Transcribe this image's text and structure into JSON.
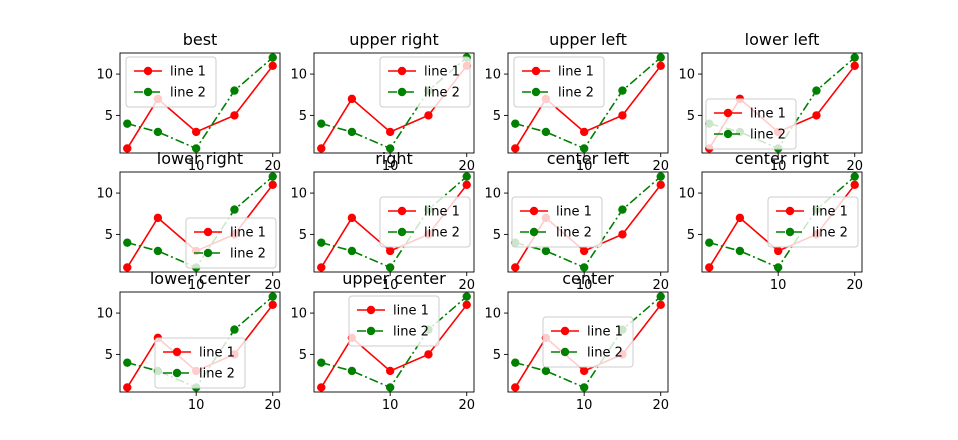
{
  "figure": {
    "background": "#ffffff"
  },
  "series_styles": [
    {
      "color": "#ff0000",
      "dash": "solid"
    },
    {
      "color": "#008000",
      "dash": "dashdot"
    }
  ],
  "chart_data": [
    {
      "type": "line",
      "title": "best",
      "legend_loc": "best",
      "legend_placement": "upper-left-inside",
      "x": [
        1,
        5,
        10,
        15,
        20
      ],
      "xticks": [
        10,
        20
      ],
      "yticks": [
        5,
        10
      ],
      "series": [
        {
          "name": "line 1",
          "values": [
            1,
            7,
            3,
            5,
            11
          ]
        },
        {
          "name": "line 2",
          "values": [
            4,
            3,
            1,
            8,
            12
          ]
        }
      ]
    },
    {
      "type": "line",
      "title": "upper right",
      "legend_loc": "upper right",
      "legend_placement": "top-right",
      "x": [
        1,
        5,
        10,
        15,
        20
      ],
      "xticks": [
        10,
        20
      ],
      "yticks": [
        5,
        10
      ],
      "series": [
        {
          "name": "line 1",
          "values": [
            1,
            7,
            3,
            5,
            11
          ]
        },
        {
          "name": "line 2",
          "values": [
            4,
            3,
            1,
            8,
            12
          ]
        }
      ]
    },
    {
      "type": "line",
      "title": "upper left",
      "legend_loc": "upper left",
      "legend_placement": "top-left",
      "x": [
        1,
        5,
        10,
        15,
        20
      ],
      "xticks": [
        10,
        20
      ],
      "yticks": [
        5,
        10
      ],
      "series": [
        {
          "name": "line 1",
          "values": [
            1,
            7,
            3,
            5,
            11
          ]
        },
        {
          "name": "line 2",
          "values": [
            4,
            3,
            1,
            8,
            12
          ]
        }
      ]
    },
    {
      "type": "line",
      "title": "lower left",
      "legend_loc": "lower left",
      "legend_placement": "bottom-left",
      "x": [
        1,
        5,
        10,
        15,
        20
      ],
      "xticks": [
        10,
        20
      ],
      "yticks": [
        5,
        10
      ],
      "series": [
        {
          "name": "line 1",
          "values": [
            1,
            7,
            3,
            5,
            11
          ]
        },
        {
          "name": "line 2",
          "values": [
            4,
            3,
            1,
            8,
            12
          ]
        }
      ]
    },
    {
      "type": "line",
      "title": "lower right",
      "legend_loc": "lower right",
      "legend_placement": "bottom-right",
      "x": [
        1,
        5,
        10,
        15,
        20
      ],
      "xticks": [
        10,
        20
      ],
      "yticks": [
        5,
        10
      ],
      "series": [
        {
          "name": "line 1",
          "values": [
            1,
            7,
            3,
            5,
            11
          ]
        },
        {
          "name": "line 2",
          "values": [
            4,
            3,
            1,
            8,
            12
          ]
        }
      ]
    },
    {
      "type": "line",
      "title": "right",
      "legend_loc": "right",
      "legend_placement": "center-right",
      "x": [
        1,
        5,
        10,
        15,
        20
      ],
      "xticks": [
        10,
        20
      ],
      "yticks": [
        5,
        10
      ],
      "series": [
        {
          "name": "line 1",
          "values": [
            1,
            7,
            3,
            5,
            11
          ]
        },
        {
          "name": "line 2",
          "values": [
            4,
            3,
            1,
            8,
            12
          ]
        }
      ]
    },
    {
      "type": "line",
      "title": "center left",
      "legend_loc": "center left",
      "legend_placement": "center-left",
      "x": [
        1,
        5,
        10,
        15,
        20
      ],
      "xticks": [
        10,
        20
      ],
      "yticks": [
        5,
        10
      ],
      "series": [
        {
          "name": "line 1",
          "values": [
            1,
            7,
            3,
            5,
            11
          ]
        },
        {
          "name": "line 2",
          "values": [
            4,
            3,
            1,
            8,
            12
          ]
        }
      ]
    },
    {
      "type": "line",
      "title": "center right",
      "legend_loc": "center right",
      "legend_placement": "center-right",
      "x": [
        1,
        5,
        10,
        15,
        20
      ],
      "xticks": [
        10,
        20
      ],
      "yticks": [
        5,
        10
      ],
      "series": [
        {
          "name": "line 1",
          "values": [
            1,
            7,
            3,
            5,
            11
          ]
        },
        {
          "name": "line 2",
          "values": [
            4,
            3,
            1,
            8,
            12
          ]
        }
      ]
    },
    {
      "type": "line",
      "title": "lower center",
      "legend_loc": "lower center",
      "legend_placement": "bottom-center",
      "x": [
        1,
        5,
        10,
        15,
        20
      ],
      "xticks": [
        10,
        20
      ],
      "yticks": [
        5,
        10
      ],
      "series": [
        {
          "name": "line 1",
          "values": [
            1,
            7,
            3,
            5,
            11
          ]
        },
        {
          "name": "line 2",
          "values": [
            4,
            3,
            1,
            8,
            12
          ]
        }
      ]
    },
    {
      "type": "line",
      "title": "upper center",
      "legend_loc": "upper center",
      "legend_placement": "top-center",
      "x": [
        1,
        5,
        10,
        15,
        20
      ],
      "xticks": [
        10,
        20
      ],
      "yticks": [
        5,
        10
      ],
      "series": [
        {
          "name": "line 1",
          "values": [
            1,
            7,
            3,
            5,
            11
          ]
        },
        {
          "name": "line 2",
          "values": [
            4,
            3,
            1,
            8,
            12
          ]
        }
      ]
    },
    {
      "type": "line",
      "title": "center",
      "legend_loc": "center",
      "legend_placement": "center",
      "x": [
        1,
        5,
        10,
        15,
        20
      ],
      "xticks": [
        10,
        20
      ],
      "yticks": [
        5,
        10
      ],
      "series": [
        {
          "name": "line 1",
          "values": [
            1,
            7,
            3,
            5,
            11
          ]
        },
        {
          "name": "line 2",
          "values": [
            4,
            3,
            1,
            8,
            12
          ]
        }
      ]
    }
  ]
}
